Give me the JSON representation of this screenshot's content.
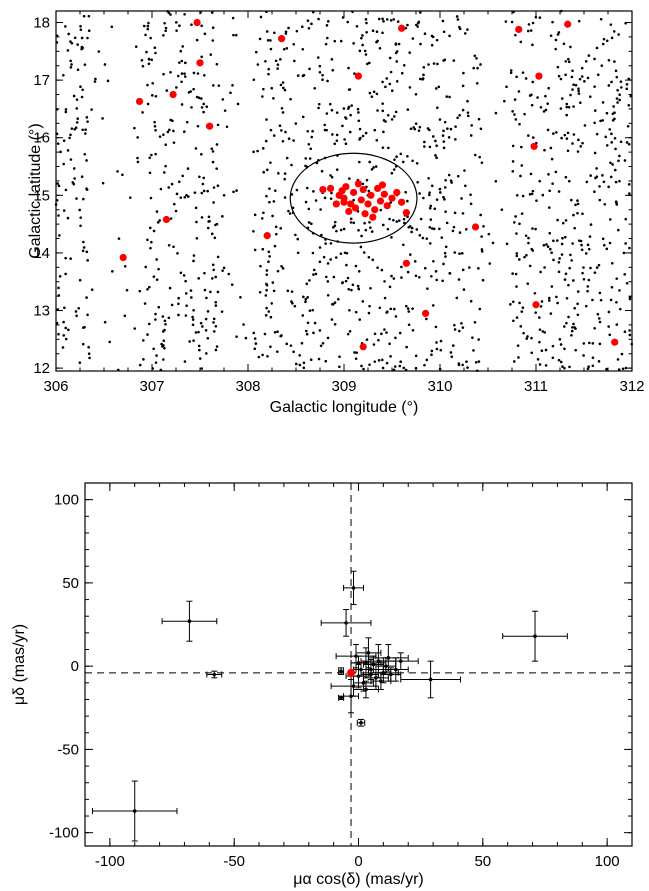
{
  "chart_data": [
    {
      "type": "scatter",
      "xlabel": "Galactic longitude (°)",
      "ylabel": "Galactic latitude (°)",
      "xlim": [
        306,
        312
      ],
      "ylim": [
        11.95,
        18.2
      ],
      "xticks": [
        306,
        307,
        308,
        309,
        310,
        311,
        312
      ],
      "yticks": [
        12,
        13,
        14,
        15,
        16,
        17,
        18
      ],
      "xtick_labels": [
        "306",
        "307",
        "308",
        "309",
        "310",
        "311",
        "312"
      ],
      "ytick_labels": [
        "12",
        "13",
        "14",
        "15",
        "16",
        "17",
        "18"
      ],
      "grid": false,
      "background_field": {
        "description_type": "dense black field-star points",
        "count": 1500,
        "color": "#000000",
        "gaps": [
          {
            "x_start": 306.35,
            "x_end": 306.85
          },
          {
            "x_start": 307.7,
            "x_end": 308.05
          },
          {
            "x_start": 310.45,
            "x_end": 310.75
          }
        ]
      },
      "ellipse": {
        "center": [
          309.1,
          14.95
        ],
        "semi_axis_x": 0.66,
        "semi_axis_y": 0.78,
        "color": "#000000"
      },
      "series": [
        {
          "color": "#ff0000",
          "points": [
            [
              307.47,
              18.0
            ],
            [
              308.35,
              17.72
            ],
            [
              309.6,
              17.9
            ],
            [
              310.82,
              17.88
            ],
            [
              311.33,
              17.97
            ],
            [
              307.5,
              17.3
            ],
            [
              309.15,
              17.07
            ],
            [
              311.03,
              17.07
            ],
            [
              306.87,
              16.63
            ],
            [
              307.22,
              16.75
            ],
            [
              307.6,
              16.2
            ],
            [
              310.98,
              15.85
            ],
            [
              307.15,
              14.58
            ],
            [
              306.7,
              13.92
            ],
            [
              308.2,
              14.3
            ],
            [
              310.37,
              14.45
            ],
            [
              309.65,
              13.82
            ],
            [
              311.0,
              13.1
            ],
            [
              309.85,
              12.95
            ],
            [
              309.2,
              12.37
            ],
            [
              311.82,
              12.45
            ],
            [
              308.78,
              15.1
            ],
            [
              308.86,
              15.12
            ],
            [
              308.95,
              15.0
            ],
            [
              309.0,
              14.95
            ],
            [
              309.02,
              15.15
            ],
            [
              309.07,
              14.85
            ],
            [
              309.1,
              15.05
            ],
            [
              309.12,
              14.78
            ],
            [
              309.15,
              15.2
            ],
            [
              309.18,
              14.92
            ],
            [
              309.2,
              15.1
            ],
            [
              309.25,
              14.85
            ],
            [
              309.28,
              15.0
            ],
            [
              309.32,
              14.75
            ],
            [
              309.35,
              15.12
            ],
            [
              309.38,
              14.9
            ],
            [
              309.42,
              15.02
            ],
            [
              309.45,
              14.82
            ],
            [
              309.5,
              14.95
            ],
            [
              309.55,
              15.05
            ],
            [
              309.6,
              14.88
            ],
            [
              309.05,
              14.72
            ],
            [
              308.92,
              14.85
            ],
            [
              309.22,
              14.68
            ],
            [
              309.4,
              15.18
            ],
            [
              309.65,
              14.7
            ],
            [
              309.3,
              14.62
            ],
            [
              309.0,
              14.88
            ],
            [
              308.98,
              15.08
            ]
          ]
        }
      ]
    },
    {
      "type": "scatter",
      "xlabel": "μα cos(δ) (mas/yr)",
      "ylabel": "μδ (mas/yr)",
      "xlim": [
        -110,
        110
      ],
      "ylim": [
        -108,
        110
      ],
      "xticks": [
        -100,
        -50,
        0,
        50,
        100
      ],
      "yticks": [
        -100,
        -50,
        0,
        50,
        100
      ],
      "xtick_labels": [
        "-100",
        "-50",
        "0",
        "50",
        "100"
      ],
      "ytick_labels": [
        "-100",
        "-50",
        "0",
        "50",
        "100"
      ],
      "grid": false,
      "reference_lines": {
        "x": -3,
        "y": -4,
        "style": "dashed"
      },
      "red_marker": {
        "x": -3,
        "y": -4,
        "color": "#ff0000"
      },
      "series": [
        {
          "color": "#000000",
          "points": [
            {
              "x": -90,
              "y": -87,
              "xerr": 17,
              "yerr": 18
            },
            {
              "x": -68,
              "y": 27,
              "xerr": 11,
              "yerr": 12
            },
            {
              "x": -58,
              "y": -5,
              "xerr": 3,
              "yerr": 2
            },
            {
              "x": 71,
              "y": 18,
              "xerr": 13,
              "yerr": 15
            },
            {
              "x": 29,
              "y": -8,
              "xerr": 12,
              "yerr": 11
            },
            {
              "x": -2,
              "y": 47,
              "xerr": 4,
              "yerr": 10
            },
            {
              "x": -5,
              "y": 26,
              "xerr": 10,
              "yerr": 8
            },
            {
              "x": -7,
              "y": -19,
              "xerr": 1,
              "yerr": 1
            },
            {
              "x": 1,
              "y": -34,
              "xerr": 1.5,
              "yerr": 2
            },
            {
              "x": -7,
              "y": -3,
              "xerr": 1,
              "yerr": 2
            },
            {
              "x": -1,
              "y": 6,
              "xerr": 8,
              "yerr": 7
            },
            {
              "x": 3,
              "y": 2,
              "xerr": 6,
              "yerr": 9
            },
            {
              "x": 8,
              "y": 3,
              "xerr": 7,
              "yerr": 10
            },
            {
              "x": 12,
              "y": 5,
              "xerr": 8,
              "yerr": 8
            },
            {
              "x": 5,
              "y": -2,
              "xerr": 6,
              "yerr": 6
            },
            {
              "x": 0,
              "y": -6,
              "xerr": 5,
              "yerr": 7
            },
            {
              "x": -2,
              "y": -12,
              "xerr": 9,
              "yerr": 6
            },
            {
              "x": 2,
              "y": -10,
              "xerr": 4,
              "yerr": 5
            },
            {
              "x": 7,
              "y": -7,
              "xerr": 5,
              "yerr": 5
            },
            {
              "x": 10,
              "y": -4,
              "xerr": 6,
              "yerr": 6
            },
            {
              "x": 15,
              "y": -2,
              "xerr": 5,
              "yerr": 7
            },
            {
              "x": 4,
              "y": 8,
              "xerr": 5,
              "yerr": 9
            },
            {
              "x": 1,
              "y": -2,
              "xerr": 3,
              "yerr": 4
            },
            {
              "x": 6,
              "y": 1,
              "xerr": 4,
              "yerr": 5
            },
            {
              "x": 9,
              "y": -9,
              "xerr": 4,
              "yerr": 5
            },
            {
              "x": 3,
              "y": -14,
              "xerr": 5,
              "yerr": 5
            },
            {
              "x": -3,
              "y": -18,
              "xerr": 3,
              "yerr": 10
            },
            {
              "x": 13,
              "y": -5,
              "xerr": 4,
              "yerr": 4
            },
            {
              "x": 0,
              "y": 2,
              "xerr": 3,
              "yerr": 4
            },
            {
              "x": 5,
              "y": -5,
              "xerr": 3,
              "yerr": 3
            },
            {
              "x": 11,
              "y": 0,
              "xerr": 4,
              "yerr": 5
            },
            {
              "x": 17,
              "y": 3,
              "xerr": 7,
              "yerr": 5
            }
          ]
        }
      ]
    }
  ]
}
